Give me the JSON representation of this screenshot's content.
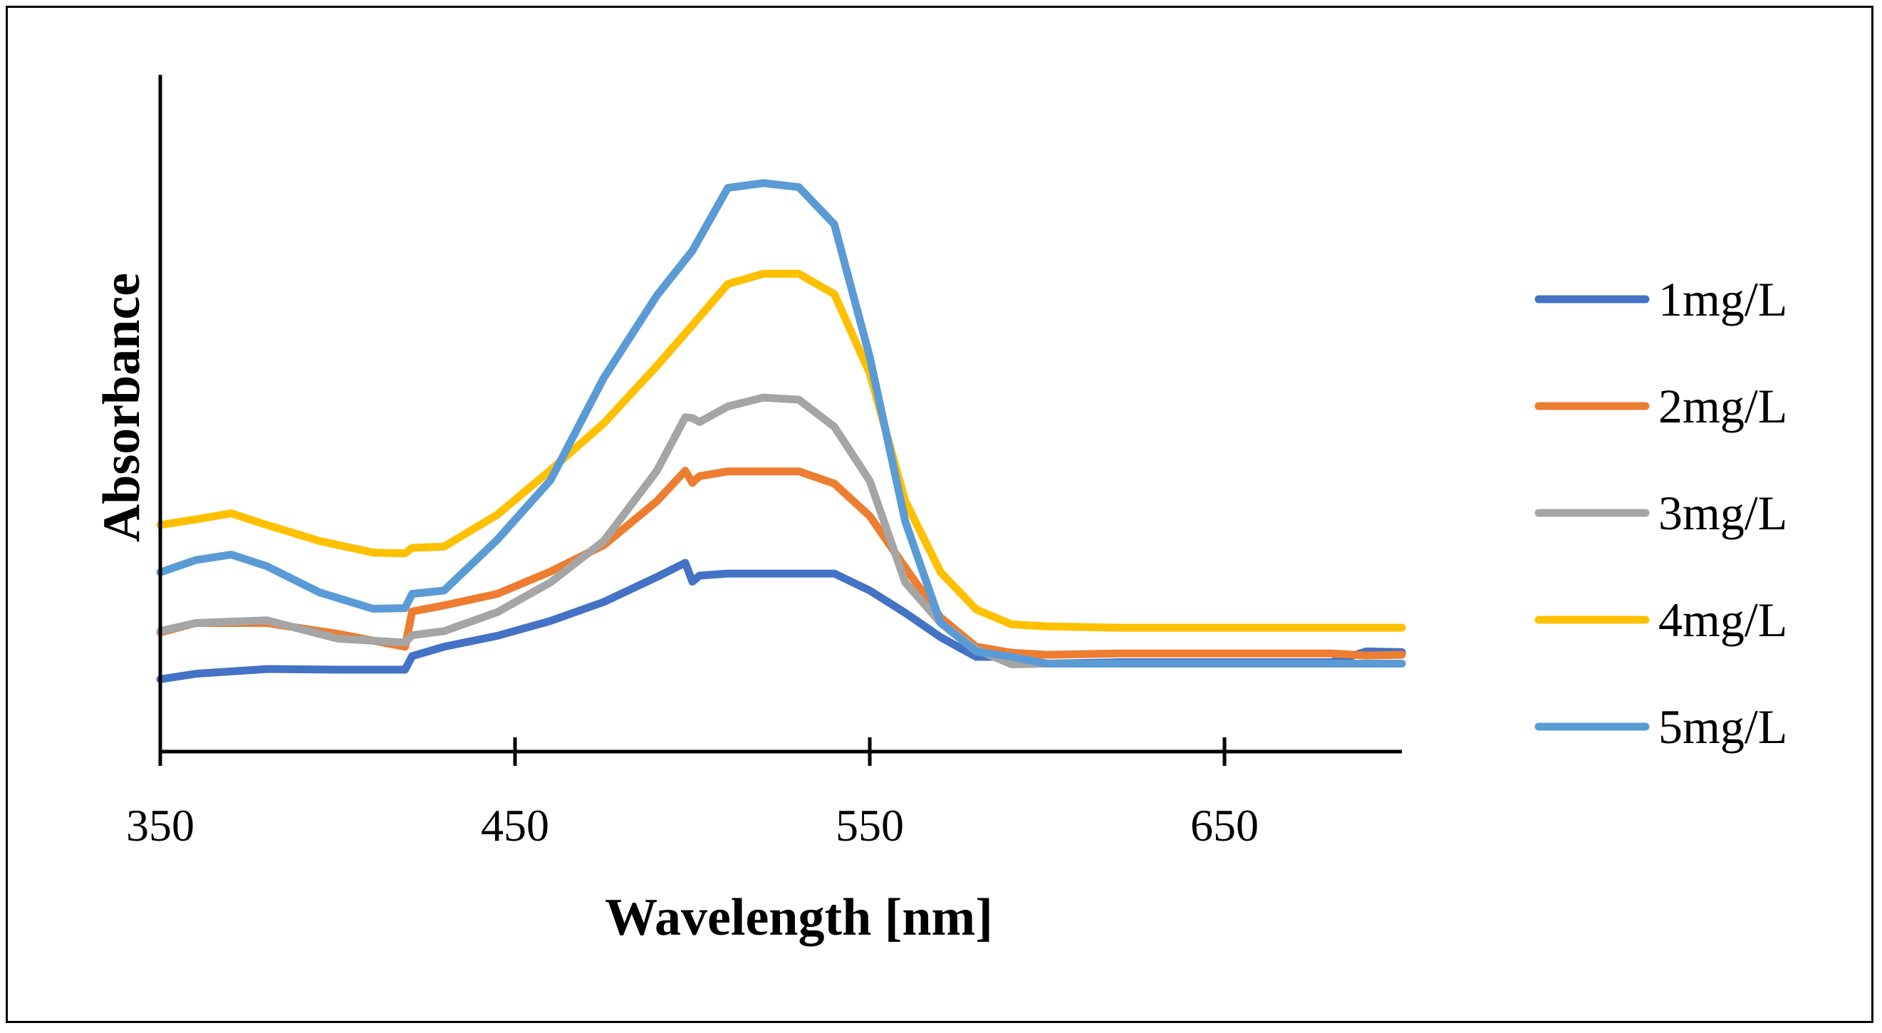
{
  "chart_data": {
    "type": "line",
    "title": "",
    "xlabel": "Wavelength [nm]",
    "ylabel": "Absorbance",
    "xlim": [
      350,
      700
    ],
    "ylim": [
      0,
      1
    ],
    "xticks": [
      350,
      450,
      550,
      650
    ],
    "xtick_labels": [
      "350",
      "450",
      "550",
      "650"
    ],
    "y_tick_labels_shown": false,
    "grid": false,
    "legend_position": "right",
    "series": [
      {
        "name": "1mg/L",
        "color": "#4472C4",
        "x": [
          350,
          360,
          380,
          400,
          419,
          421,
          430,
          445,
          460,
          475,
          490,
          498,
          500,
          502,
          510,
          520,
          530,
          540,
          550,
          560,
          570,
          580,
          590,
          600,
          620,
          650,
          680,
          690,
          700
        ],
        "y": [
          0.107,
          0.115,
          0.122,
          0.121,
          0.121,
          0.141,
          0.155,
          0.171,
          0.193,
          0.221,
          0.258,
          0.279,
          0.251,
          0.26,
          0.263,
          0.263,
          0.263,
          0.263,
          0.238,
          0.205,
          0.169,
          0.14,
          0.14,
          0.13,
          0.132,
          0.132,
          0.132,
          0.148,
          0.147
        ]
      },
      {
        "name": "2mg/L",
        "color": "#ED7D31",
        "x": [
          350,
          360,
          380,
          400,
          419,
          421,
          430,
          445,
          460,
          475,
          490,
          498,
          500,
          502,
          510,
          520,
          530,
          540,
          550,
          560,
          570,
          580,
          590,
          600,
          620,
          650,
          680,
          690,
          700
        ],
        "y": [
          0.176,
          0.19,
          0.19,
          0.174,
          0.155,
          0.207,
          0.216,
          0.233,
          0.266,
          0.305,
          0.37,
          0.415,
          0.397,
          0.407,
          0.414,
          0.414,
          0.414,
          0.396,
          0.348,
          0.272,
          0.198,
          0.155,
          0.146,
          0.143,
          0.145,
          0.145,
          0.145,
          0.142,
          0.143
        ]
      },
      {
        "name": "3mg/L",
        "color": "#A5A5A5",
        "x": [
          350,
          360,
          380,
          400,
          419,
          421,
          430,
          445,
          460,
          475,
          490,
          498,
          500,
          502,
          510,
          520,
          530,
          540,
          550,
          560,
          570,
          580,
          590,
          600,
          620,
          650,
          680,
          690,
          700
        ],
        "y": [
          0.178,
          0.19,
          0.194,
          0.167,
          0.161,
          0.172,
          0.178,
          0.206,
          0.25,
          0.311,
          0.415,
          0.494,
          0.493,
          0.487,
          0.51,
          0.523,
          0.52,
          0.48,
          0.4,
          0.25,
          0.19,
          0.151,
          0.129,
          0.13,
          0.13,
          0.13,
          0.13,
          0.13,
          0.13
        ]
      },
      {
        "name": "4mg/L",
        "color": "#FFC000",
        "x": [
          350,
          360,
          370,
          380,
          395,
          410,
          419,
          421,
          430,
          445,
          460,
          475,
          490,
          500,
          510,
          520,
          530,
          540,
          550,
          560,
          570,
          580,
          590,
          600,
          620,
          650,
          680,
          700
        ],
        "y": [
          0.335,
          0.343,
          0.352,
          0.335,
          0.311,
          0.294,
          0.293,
          0.301,
          0.303,
          0.35,
          0.416,
          0.485,
          0.57,
          0.63,
          0.691,
          0.706,
          0.706,
          0.676,
          0.559,
          0.37,
          0.265,
          0.21,
          0.188,
          0.185,
          0.183,
          0.183,
          0.183,
          0.183
        ]
      },
      {
        "name": "5mg/L",
        "color": "#5B9BD5",
        "x": [
          350,
          360,
          370,
          380,
          395,
          410,
          419,
          421,
          430,
          445,
          460,
          475,
          490,
          500,
          510,
          520,
          530,
          540,
          550,
          560,
          570,
          580,
          590,
          600,
          620,
          650,
          680,
          700
        ],
        "y": [
          0.265,
          0.283,
          0.291,
          0.274,
          0.235,
          0.211,
          0.212,
          0.233,
          0.238,
          0.313,
          0.401,
          0.552,
          0.674,
          0.74,
          0.833,
          0.84,
          0.834,
          0.779,
          0.583,
          0.34,
          0.19,
          0.148,
          0.14,
          0.13,
          0.13,
          0.13,
          0.13,
          0.13
        ]
      }
    ]
  }
}
